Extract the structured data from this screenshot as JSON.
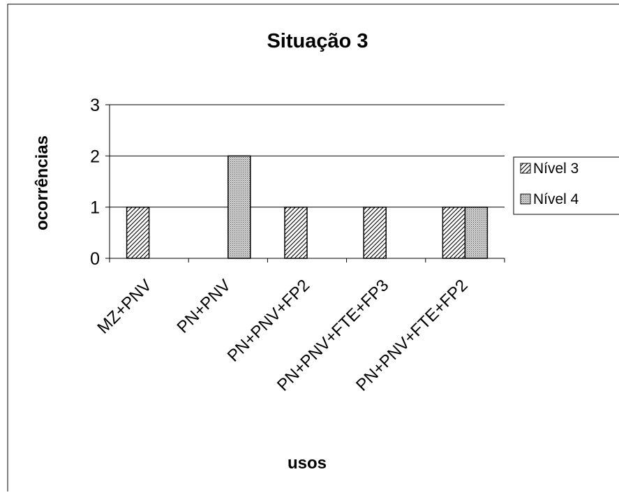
{
  "chart_data": {
    "type": "bar",
    "title": "Situação 3",
    "xlabel": "usos",
    "ylabel": "ocorrências",
    "categories": [
      "MZ+PNV",
      "PN+PNV",
      "PN+PNV+FP2",
      "PN+PNV+FTE+FP3",
      "PN+PNV+FTE+FP2"
    ],
    "series": [
      {
        "name": "Nível 3",
        "values": [
          1,
          0,
          1,
          1,
          1
        ],
        "pattern": "diagonal-hatch"
      },
      {
        "name": "Nível 4",
        "values": [
          0,
          2,
          0,
          0,
          1
        ],
        "pattern": "dotted"
      }
    ],
    "ylim": [
      0,
      3
    ],
    "yticks": [
      0,
      1,
      2,
      3
    ],
    "grid": true,
    "legend_position": "right"
  }
}
